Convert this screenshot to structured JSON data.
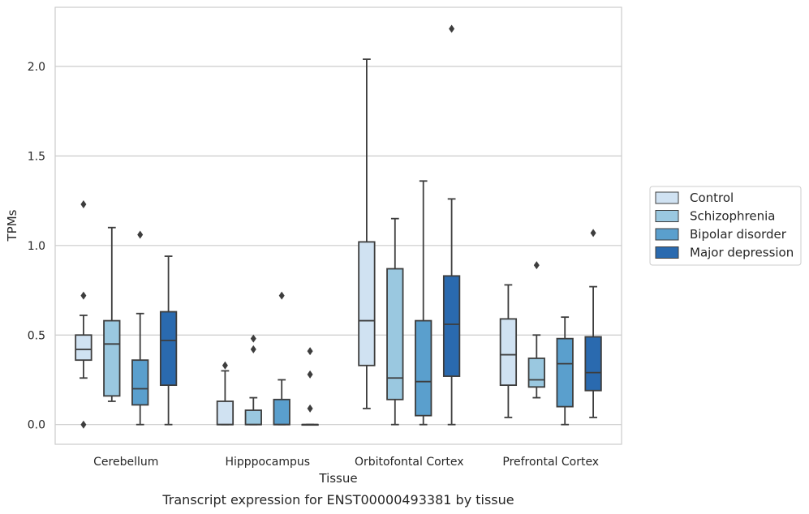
{
  "caption": "Transcript expression for ENST00000493381 by tissue",
  "chart_data": {
    "type": "box",
    "title": "",
    "xlabel": "Tissue",
    "ylabel": "TPMs",
    "ylim": [
      -0.11,
      2.33
    ],
    "yticks": [
      "0.0",
      "0.5",
      "1.0",
      "1.5",
      "2.0"
    ],
    "grid": "horizontal",
    "legend_position": "right",
    "categories": [
      "Cerebellum",
      "Hipppocampus",
      "Orbitofontal Cortex",
      "Prefrontal Cortex"
    ],
    "series": [
      {
        "name": "Control",
        "color": "#d0e2f2",
        "boxes": [
          {
            "whisker_low": 0.26,
            "q1": 0.36,
            "median": 0.42,
            "q3": 0.5,
            "whisker_high": 0.61,
            "outliers": [
              1.23,
              0.72,
              0.0
            ]
          },
          {
            "whisker_low": 0.0,
            "q1": 0.0,
            "median": 0.0,
            "q3": 0.13,
            "whisker_high": 0.3,
            "outliers": [
              0.33
            ]
          },
          {
            "whisker_low": 0.09,
            "q1": 0.33,
            "median": 0.58,
            "q3": 1.02,
            "whisker_high": 2.04,
            "outliers": []
          },
          {
            "whisker_low": 0.04,
            "q1": 0.22,
            "median": 0.39,
            "q3": 0.59,
            "whisker_high": 0.78,
            "outliers": []
          }
        ]
      },
      {
        "name": "Schizophrenia",
        "color": "#9ac8e0",
        "boxes": [
          {
            "whisker_low": 0.13,
            "q1": 0.16,
            "median": 0.45,
            "q3": 0.58,
            "whisker_high": 1.1,
            "outliers": []
          },
          {
            "whisker_low": 0.0,
            "q1": 0.0,
            "median": 0.0,
            "q3": 0.08,
            "whisker_high": 0.15,
            "outliers": [
              0.48,
              0.42
            ]
          },
          {
            "whisker_low": 0.0,
            "q1": 0.14,
            "median": 0.26,
            "q3": 0.87,
            "whisker_high": 1.15,
            "outliers": []
          },
          {
            "whisker_low": 0.15,
            "q1": 0.21,
            "median": 0.25,
            "q3": 0.37,
            "whisker_high": 0.5,
            "outliers": [
              0.89
            ]
          }
        ]
      },
      {
        "name": "Bipolar disorder",
        "color": "#5a9fcd",
        "boxes": [
          {
            "whisker_low": 0.0,
            "q1": 0.11,
            "median": 0.2,
            "q3": 0.36,
            "whisker_high": 0.62,
            "outliers": [
              1.06
            ]
          },
          {
            "whisker_low": 0.0,
            "q1": 0.0,
            "median": 0.0,
            "q3": 0.14,
            "whisker_high": 0.25,
            "outliers": [
              0.72
            ]
          },
          {
            "whisker_low": 0.0,
            "q1": 0.05,
            "median": 0.24,
            "q3": 0.58,
            "whisker_high": 1.36,
            "outliers": []
          },
          {
            "whisker_low": 0.0,
            "q1": 0.1,
            "median": 0.34,
            "q3": 0.48,
            "whisker_high": 0.6,
            "outliers": []
          }
        ]
      },
      {
        "name": "Major depression",
        "color": "#2a6aaf",
        "boxes": [
          {
            "whisker_low": 0.0,
            "q1": 0.22,
            "median": 0.47,
            "q3": 0.63,
            "whisker_high": 0.94,
            "outliers": []
          },
          {
            "whisker_low": 0.0,
            "q1": 0.0,
            "median": 0.0,
            "q3": 0.0,
            "whisker_high": 0.0,
            "outliers": [
              0.41,
              0.28,
              0.09
            ]
          },
          {
            "whisker_low": 0.0,
            "q1": 0.27,
            "median": 0.56,
            "q3": 0.83,
            "whisker_high": 1.26,
            "outliers": [
              2.21
            ]
          },
          {
            "whisker_low": 0.04,
            "q1": 0.19,
            "median": 0.29,
            "q3": 0.49,
            "whisker_high": 0.77,
            "outliers": [
              1.07
            ]
          }
        ]
      }
    ]
  }
}
